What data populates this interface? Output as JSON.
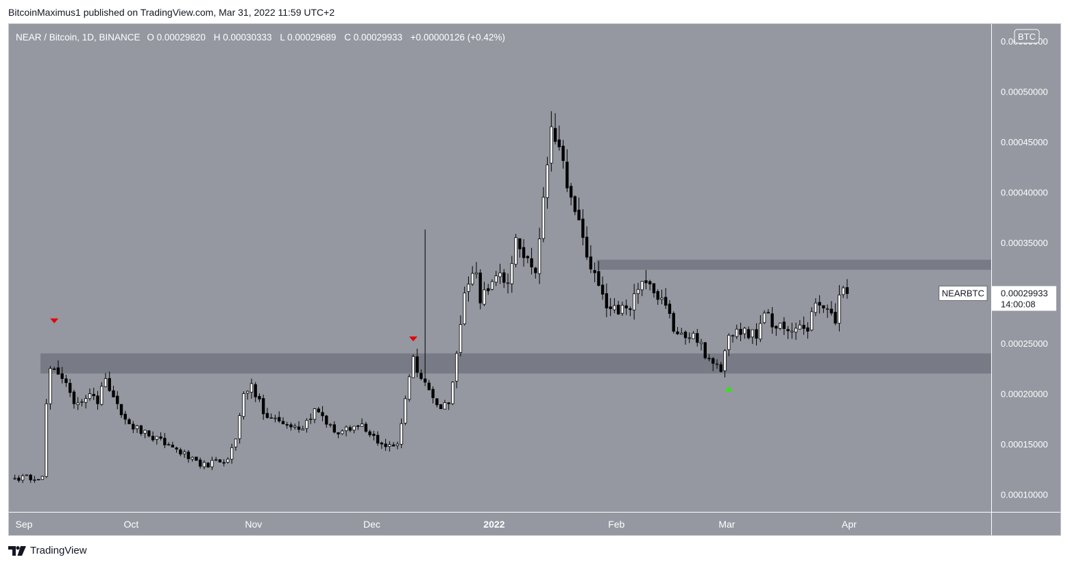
{
  "header": {
    "publisher": "BitcoinMaximus1 published on TradingView.com, Mar 31, 2022 11:59 UTC+2"
  },
  "legend": {
    "symbol": "NEAR / Bitcoin, 1D, BINANCE",
    "o_label": "O",
    "o_value": "0.00029820",
    "h_label": "H",
    "h_value": "0.00030333",
    "l_label": "L",
    "l_value": "0.00029689",
    "c_label": "C",
    "c_value": "0.00029933",
    "change": "+0.00000126 (+0.42%)"
  },
  "currency_badge": "BTC",
  "price_tag": {
    "symbol": "NEARBTC",
    "price": "0.00029933",
    "countdown": "14:00:08"
  },
  "footer": {
    "brand": "TradingView"
  },
  "colors": {
    "background": "#9598a1",
    "up_candle": "#ffffff",
    "down_candle": "#000000",
    "zone": "#6f727c",
    "sell_marker": "#e60000",
    "buy_marker": "#2ee60f",
    "axis_text": "#ffffff"
  },
  "chart_data": {
    "type": "candlestick",
    "title": "NEAR / Bitcoin, 1D, BINANCE",
    "y_axis": {
      "ticks": [
        0.0001,
        0.00015,
        0.0002,
        0.00025,
        0.0003,
        0.00035,
        0.0004,
        0.00045,
        0.0005,
        0.00055
      ],
      "tick_labels": [
        "0.00010000",
        "0.00015000",
        "0.00020000",
        "0.00025000",
        "0.00030000",
        "0.00035000",
        "0.00040000",
        "0.00045000",
        "0.00050000",
        "0.00055000"
      ],
      "visible_tick_labels": [
        "0.00010000",
        "0.00015000",
        "0.00020000",
        "0.00025000",
        "0.00030000",
        "0.00035000",
        "0.00040000",
        "0.00045000",
        "0.00050000",
        "0.00055000"
      ],
      "range": [
        8.27e-05,
        0.000567
      ]
    },
    "x_axis": {
      "range": [
        "2021-08-31",
        "2022-05-07"
      ],
      "ticks": [
        {
          "date": "2021-09-01",
          "label": "Sep",
          "bold": false
        },
        {
          "date": "2021-10-01",
          "label": "Oct",
          "bold": false
        },
        {
          "date": "2021-11-01",
          "label": "Nov",
          "bold": false
        },
        {
          "date": "2021-12-01",
          "label": "Dec",
          "bold": false
        },
        {
          "date": "2022-01-01",
          "label": "2022",
          "bold": true
        },
        {
          "date": "2022-02-01",
          "label": "Feb",
          "bold": false
        },
        {
          "date": "2022-03-01",
          "label": "Mar",
          "bold": false
        },
        {
          "date": "2022-04-01",
          "label": "Apr",
          "bold": false
        }
      ]
    },
    "zones": [
      {
        "from": 0.00022,
        "to": 0.00024,
        "x_start": "2021-09-08"
      },
      {
        "from": 0.000323,
        "to": 0.000333,
        "x_start": "2022-01-27"
      }
    ],
    "markers": [
      {
        "date": "2021-09-11",
        "type": "down",
        "price": 0.000272
      },
      {
        "date": "2021-12-11",
        "type": "down",
        "price": 0.000254
      },
      {
        "date": "2022-03-01",
        "type": "up",
        "price": 0.000205
      }
    ],
    "series": [
      {
        "name": "NEARBTC",
        "anchors": [
          [
            "2021-09-01",
            0.000116
          ],
          [
            "2021-09-08",
            0.000118
          ],
          [
            "2021-09-09",
            0.00019
          ],
          [
            "2021-09-10",
            0.000225
          ],
          [
            "2021-09-13",
            0.000215
          ],
          [
            "2021-09-16",
            0.00019
          ],
          [
            "2021-09-20",
            0.0002
          ],
          [
            "2021-09-22",
            0.00019
          ],
          [
            "2021-09-24",
            0.000215
          ],
          [
            "2021-09-27",
            0.00019
          ],
          [
            "2021-09-30",
            0.00017
          ],
          [
            "2021-10-05",
            0.000158
          ],
          [
            "2021-10-12",
            0.000145
          ],
          [
            "2021-10-18",
            0.000128
          ],
          [
            "2021-10-25",
            0.000135
          ],
          [
            "2021-10-27",
            0.000155
          ],
          [
            "2021-10-29",
            0.0002
          ],
          [
            "2021-10-31",
            0.00021
          ],
          [
            "2021-11-03",
            0.00018
          ],
          [
            "2021-11-08",
            0.00017
          ],
          [
            "2021-11-13",
            0.000165
          ],
          [
            "2021-11-16",
            0.000185
          ],
          [
            "2021-11-18",
            0.000178
          ],
          [
            "2021-11-22",
            0.00016
          ],
          [
            "2021-11-28",
            0.00017
          ],
          [
            "2021-12-03",
            0.00015
          ],
          [
            "2021-12-07",
            0.00015
          ],
          [
            "2021-12-09",
            0.000195
          ],
          [
            "2021-12-11",
            0.000237
          ],
          [
            "2021-12-13",
            0.000215
          ],
          [
            "2021-12-18",
            0.000185
          ],
          [
            "2021-12-20",
            0.00019
          ],
          [
            "2021-12-22",
            0.00024
          ],
          [
            "2021-12-24",
            0.0003
          ],
          [
            "2021-12-27",
            0.00032
          ],
          [
            "2021-12-28",
            0.00029
          ],
          [
            "2022-01-02",
            0.00032
          ],
          [
            "2022-01-04",
            0.00031
          ],
          [
            "2022-01-06",
            0.000355
          ],
          [
            "2022-01-08",
            0.000335
          ],
          [
            "2022-01-11",
            0.00032
          ],
          [
            "2022-01-13",
            0.000395
          ],
          [
            "2022-01-15",
            0.000465
          ],
          [
            "2022-01-17",
            0.000445
          ],
          [
            "2022-01-20",
            0.000395
          ],
          [
            "2022-01-23",
            0.000355
          ],
          [
            "2022-01-26",
            0.00032
          ],
          [
            "2022-01-29",
            0.000285
          ],
          [
            "2022-02-03",
            0.000285
          ],
          [
            "2022-02-08",
            0.00031
          ],
          [
            "2022-02-12",
            0.000295
          ],
          [
            "2022-02-15",
            0.000262
          ],
          [
            "2022-02-20",
            0.00026
          ],
          [
            "2022-02-24",
            0.000235
          ],
          [
            "2022-02-27",
            0.000222
          ],
          [
            "2022-03-01",
            0.000258
          ],
          [
            "2022-03-05",
            0.000265
          ],
          [
            "2022-03-08",
            0.000255
          ],
          [
            "2022-03-10",
            0.00028
          ],
          [
            "2022-03-13",
            0.000265
          ],
          [
            "2022-03-18",
            0.000265
          ],
          [
            "2022-03-21",
            0.000262
          ],
          [
            "2022-03-23",
            0.00029
          ],
          [
            "2022-03-25",
            0.000285
          ],
          [
            "2022-03-27",
            0.00028
          ],
          [
            "2022-03-28",
            0.00027
          ],
          [
            "2022-03-29",
            0.000298
          ],
          [
            "2022-03-31",
            0.00029933
          ]
        ]
      }
    ],
    "spikes": [
      {
        "date": "2021-12-14",
        "high": 0.000363
      }
    ]
  }
}
